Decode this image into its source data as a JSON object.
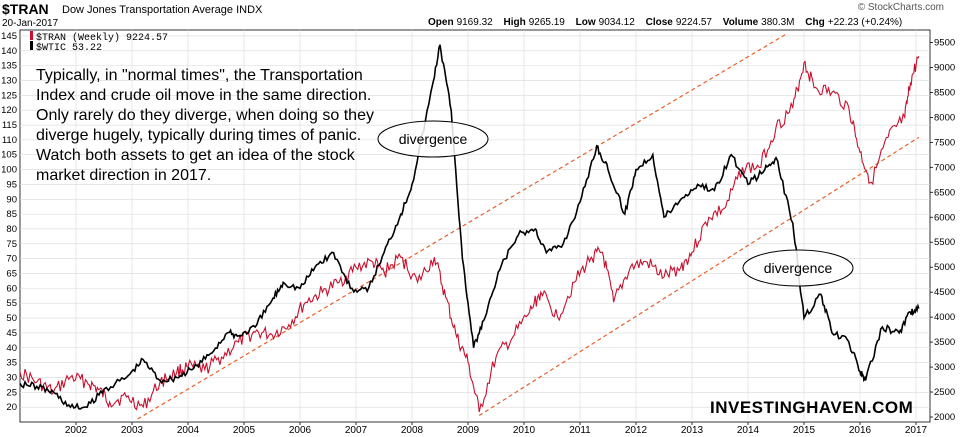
{
  "header": {
    "symbol": "$TRAN",
    "description": "Dow Jones Transportation Average INDX",
    "date": "20-Jan-2017",
    "ohlc": [
      {
        "label": "Open",
        "value": "9169.32"
      },
      {
        "label": "High",
        "value": "9265.19"
      },
      {
        "label": "Low",
        "value": "9034.12"
      },
      {
        "label": "Close",
        "value": "9224.57"
      },
      {
        "label": "Volume",
        "value": "380.3M"
      },
      {
        "label": "Chg",
        "value": "+22.23 (+0.24%)"
      }
    ],
    "copyright": "© StockCharts.com"
  },
  "legend": [
    {
      "label": "$TRAN (Weekly) 9224.57",
      "color": "#c8102e"
    },
    {
      "label": "$WTIC 53.22",
      "color": "#000000"
    }
  ],
  "annotation_text": "Typically, in \"normal times\", the Transportation Index and crude oil move in the same direction. Only rarely do they diverge, when doing so they diverge hugely, typically during times of panic. Watch both assets to get an idea of the stock market direction in 2017.",
  "brand": "INVESTINGHAVEN.COM",
  "colors": {
    "tran": "#c8102e",
    "wtic": "#000000",
    "channel": "#e8602a",
    "grid": "#d9d9d9"
  },
  "chart_data": {
    "type": "line",
    "x_ticks": [
      "2002",
      "2003",
      "2004",
      "2005",
      "2006",
      "2007",
      "2008",
      "2009",
      "2010",
      "2011",
      "2012",
      "2013",
      "2014",
      "2015",
      "2016",
      "2017"
    ],
    "left_axis": {
      "ticks": [
        20,
        25,
        30,
        35,
        40,
        45,
        50,
        55,
        60,
        65,
        70,
        75,
        80,
        85,
        90,
        95,
        100,
        105,
        110,
        115,
        120,
        125,
        130,
        135,
        140,
        145
      ],
      "range": [
        15,
        147
      ]
    },
    "right_axis": {
      "ticks": [
        2000,
        2500,
        3000,
        3500,
        4000,
        4500,
        5000,
        5500,
        6000,
        6500,
        7000,
        7500,
        8000,
        8500,
        9000,
        9500
      ],
      "range": [
        1900,
        9750
      ]
    },
    "series": [
      {
        "name": "$TRAN (Weekly) 9224.57",
        "axis": "right",
        "x": [
          2001.0,
          2001.3,
          2001.6,
          2001.9,
          2002.2,
          2002.4,
          2002.6,
          2002.9,
          2003.2,
          2003.5,
          2003.8,
          2004.0,
          2004.3,
          2004.6,
          2004.9,
          2005.2,
          2005.5,
          2005.8,
          2006.1,
          2006.4,
          2006.7,
          2007.0,
          2007.3,
          2007.5,
          2007.8,
          2008.1,
          2008.4,
          2008.6,
          2008.8,
          2009.0,
          2009.2,
          2009.5,
          2009.8,
          2010.1,
          2010.3,
          2010.6,
          2010.9,
          2011.2,
          2011.4,
          2011.6,
          2011.9,
          2012.2,
          2012.5,
          2012.8,
          2013.0,
          2013.3,
          2013.6,
          2013.9,
          2014.2,
          2014.5,
          2014.8,
          2015.0,
          2015.2,
          2015.5,
          2015.8,
          2016.0,
          2016.2,
          2016.5,
          2016.8,
          2016.9,
          2017.05
        ],
        "values": [
          2900,
          2700,
          2500,
          2800,
          2700,
          2550,
          2300,
          2400,
          2200,
          2700,
          2900,
          3000,
          2950,
          3200,
          3500,
          3700,
          3650,
          3850,
          4300,
          4500,
          4700,
          5000,
          5100,
          4900,
          5200,
          4700,
          5200,
          4400,
          3600,
          3100,
          2100,
          3200,
          3600,
          4100,
          4500,
          4000,
          4700,
          5200,
          5300,
          4300,
          5000,
          5100,
          4800,
          5000,
          5300,
          6000,
          6200,
          7000,
          7000,
          7800,
          8200,
          9100,
          8600,
          8500,
          8200,
          7300,
          6700,
          7600,
          8000,
          8700,
          9224.57
        ]
      },
      {
        "name": "$WTIC 53.22",
        "axis": "left",
        "x": [
          2001.0,
          2001.3,
          2001.6,
          2001.9,
          2002.2,
          2002.5,
          2002.9,
          2003.2,
          2003.5,
          2003.8,
          2004.1,
          2004.4,
          2004.7,
          2004.9,
          2005.2,
          2005.5,
          2005.7,
          2006.0,
          2006.3,
          2006.6,
          2006.9,
          2007.2,
          2007.5,
          2007.8,
          2008.0,
          2008.3,
          2008.5,
          2008.7,
          2008.9,
          2009.1,
          2009.3,
          2009.6,
          2009.9,
          2010.2,
          2010.4,
          2010.7,
          2011.0,
          2011.3,
          2011.5,
          2011.8,
          2012.0,
          2012.3,
          2012.5,
          2012.8,
          2013.1,
          2013.4,
          2013.7,
          2014.0,
          2014.3,
          2014.5,
          2014.8,
          2015.0,
          2015.3,
          2015.5,
          2015.8,
          2016.0,
          2016.1,
          2016.4,
          2016.7,
          2016.9,
          2017.05
        ],
        "values": [
          28,
          27,
          25,
          20,
          20,
          26,
          30,
          36,
          29,
          30,
          33,
          38,
          45,
          44,
          47,
          56,
          62,
          60,
          68,
          72,
          60,
          59,
          72,
          85,
          95,
          122,
          142,
          120,
          70,
          40,
          50,
          68,
          78,
          80,
          72,
          75,
          89,
          108,
          100,
          85,
          100,
          105,
          84,
          90,
          95,
          93,
          105,
          95,
          100,
          104,
          82,
          50,
          58,
          45,
          42,
          32,
          29,
          47,
          45,
          52,
          53.22
        ]
      }
    ],
    "channel_lines": [
      {
        "x": [
          2003.1,
          2014.7
        ],
        "right_values": [
          1960,
          9680
        ]
      },
      {
        "x": [
          2009.2,
          2017.05
        ],
        "right_values": [
          2030,
          7600
        ]
      }
    ],
    "annotations": [
      "divergence",
      "divergence"
    ]
  }
}
